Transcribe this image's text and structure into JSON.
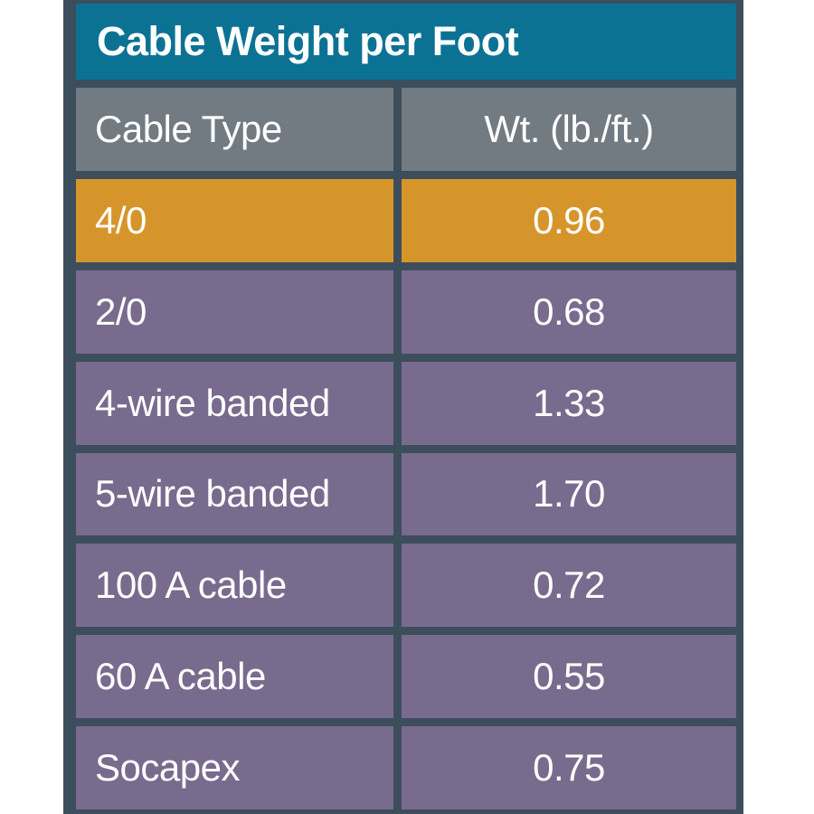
{
  "title": "Cable Weight per Foot",
  "columns": {
    "type": "Cable Type",
    "weight": "Wt. (lb./ft.)"
  },
  "rows": [
    {
      "type": "4/0",
      "weight": "0.96",
      "highlight": true
    },
    {
      "type": "2/0",
      "weight": "0.68",
      "highlight": false
    },
    {
      "type": "4-wire banded",
      "weight": "1.33",
      "highlight": false
    },
    {
      "type": "5-wire banded",
      "weight": "1.70",
      "highlight": false
    },
    {
      "type": "100 A cable",
      "weight": "0.72",
      "highlight": false
    },
    {
      "type": "60 A cable",
      "weight": "0.55",
      "highlight": false
    },
    {
      "type": "Socapex",
      "weight": "0.75",
      "highlight": false
    }
  ],
  "colors": {
    "page_bg": "#ffffff",
    "frame": "#3c4e5c",
    "title_bg": "#0b7294",
    "header_bg": "#727a82",
    "row_bg": "#786b8d",
    "highlight_bg": "#d6952b",
    "text": "#ffffff"
  },
  "chart_data": {
    "type": "table",
    "title": "Cable Weight per Foot",
    "columns": [
      "Cable Type",
      "Wt. (lb./ft.)"
    ],
    "categories": [
      "4/0",
      "2/0",
      "4-wire banded",
      "5-wire banded",
      "100 A cable",
      "60 A cable",
      "Socapex"
    ],
    "values": [
      0.96,
      0.68,
      1.33,
      1.7,
      0.72,
      0.55,
      0.75
    ],
    "highlighted_row": "4/0",
    "legend_position": "none",
    "grid": false
  }
}
